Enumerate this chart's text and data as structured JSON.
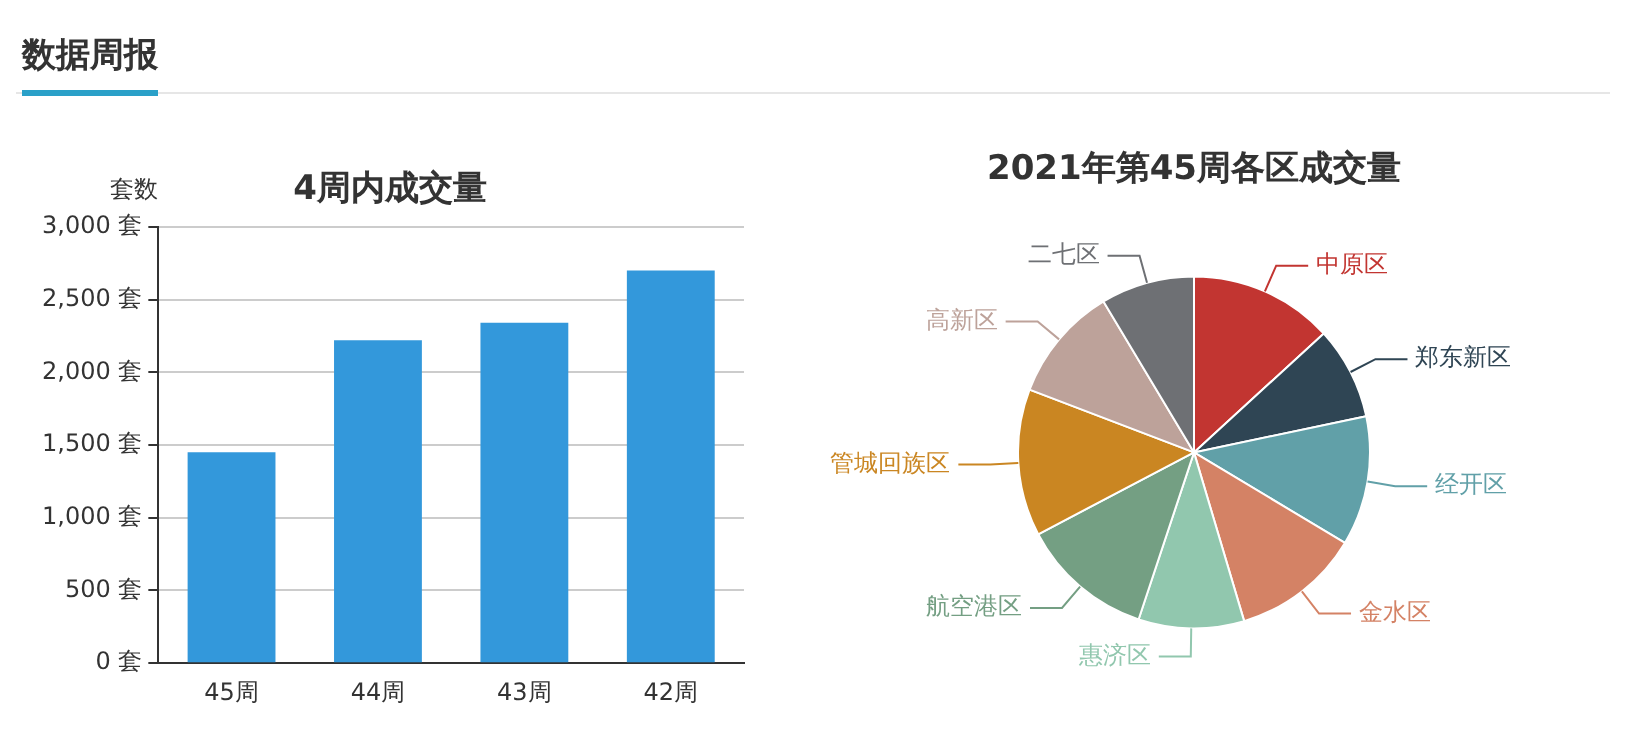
{
  "chart_data": [
    {
      "type": "bar",
      "title": "4周内成交量",
      "ylabel": "套数",
      "annotations": [
        "数据周报"
      ],
      "categories": [
        "45周",
        "44周",
        "43周",
        "42周"
      ],
      "values": [
        1450,
        2220,
        2340,
        2700
      ],
      "color": "#3398db",
      "ylim": [
        0,
        3000
      ],
      "yticks": [
        {
          "value": 0,
          "label": "0 套"
        },
        {
          "value": 500,
          "label": "500 套"
        },
        {
          "value": 1000,
          "label": "1,000 套"
        },
        {
          "value": 1500,
          "label": "1,500 套"
        },
        {
          "value": 2000,
          "label": "2,000 套"
        },
        {
          "value": 2500,
          "label": "2,500 套"
        },
        {
          "value": 3000,
          "label": "3,000 套"
        }
      ],
      "grid": "y",
      "legend": false
    },
    {
      "type": "pie",
      "title": "2021年第45周各区成交量",
      "categories": [
        "中原区",
        "郑东新区",
        "经开区",
        "金水区",
        "惠济区",
        "航空港区",
        "管城回族区",
        "高新区",
        "二七区"
      ],
      "values": [
        13.2,
        8.5,
        11.9,
        11.8,
        9.7,
        12.2,
        13.5,
        10.6,
        8.6
      ],
      "colors": [
        "#c23531",
        "#2f4554",
        "#61a0a8",
        "#d48265",
        "#91c7ae",
        "#749f83",
        "#ca8622",
        "#bda29a",
        "#6e7074"
      ],
      "legend": false
    }
  ]
}
